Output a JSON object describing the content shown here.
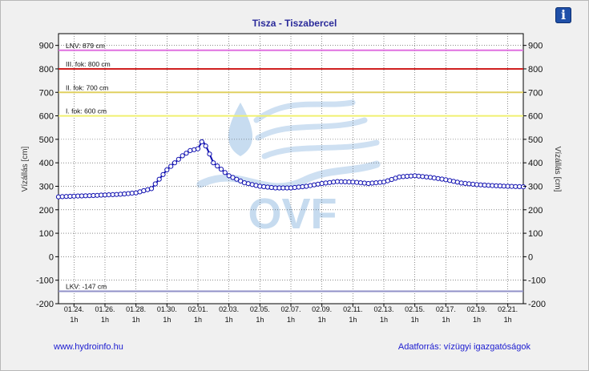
{
  "window": {
    "info_icon": "info-icon",
    "info_glyph": "i",
    "footer_link": "www.hydroinfo.hu",
    "footer_source": "Adatforrás: vízügyi igazgatóságok",
    "watermark_text": "OVF"
  },
  "colors": {
    "series": "#1010b0",
    "lnv": "#e070e0",
    "iii_fok": "#d02020",
    "ii_fok": "#e0d060",
    "i_fok": "#f0f070",
    "lkv": "#9090c8",
    "watermark": "#b9d3ec"
  },
  "chart_data": {
    "type": "line",
    "title": "Tisza - Tiszabercel",
    "ylabel": "Vízállás [cm]",
    "ylabel_right": "Vízállás [cm]",
    "ylim": [
      -200,
      950
    ],
    "yticks": [
      -200,
      -100,
      0,
      100,
      200,
      300,
      400,
      500,
      600,
      700,
      800,
      900
    ],
    "x_range": [
      0,
      30
    ],
    "x_tick_positions": [
      1,
      3,
      5,
      7,
      9,
      11,
      13,
      15,
      17,
      19,
      21,
      23,
      25,
      27,
      29
    ],
    "x_tick_labels": [
      "01.24.",
      "01.26.",
      "01.28.",
      "01.30.",
      "02.01.",
      "02.03.",
      "02.05.",
      "02.07.",
      "02.09.",
      "02.11.",
      "02.13.",
      "02.15.",
      "02.17.",
      "02.19.",
      "02.21."
    ],
    "x_tick_sublabel": "1h",
    "grid": true,
    "reference_lines": [
      {
        "label": "LNV: 879 cm",
        "value": 879,
        "color": "#e070e0"
      },
      {
        "label": "III. fok: 800 cm",
        "value": 800,
        "color": "#d02020"
      },
      {
        "label": "II. fok: 700 cm",
        "value": 700,
        "color": "#e0d060"
      },
      {
        "label": "I. fok: 600 cm",
        "value": 600,
        "color": "#f0f070"
      },
      {
        "label": "LKV: -147 cm",
        "value": -147,
        "color": "#9090c8"
      }
    ],
    "series": [
      {
        "x": [
          0,
          1,
          2,
          3,
          4,
          5,
          6,
          7,
          8,
          8.5,
          9,
          9.3,
          9.6,
          10,
          11,
          12,
          13,
          14,
          15,
          16,
          17,
          18,
          19,
          20,
          21,
          22,
          23,
          24,
          25,
          26,
          27,
          28,
          29,
          30
        ],
        "values": [
          255,
          258,
          260,
          263,
          266,
          272,
          290,
          370,
          430,
          452,
          460,
          495,
          460,
          400,
          345,
          315,
          300,
          293,
          293,
          300,
          312,
          320,
          318,
          312,
          318,
          340,
          345,
          338,
          328,
          314,
          307,
          303,
          300,
          298
        ]
      }
    ]
  }
}
